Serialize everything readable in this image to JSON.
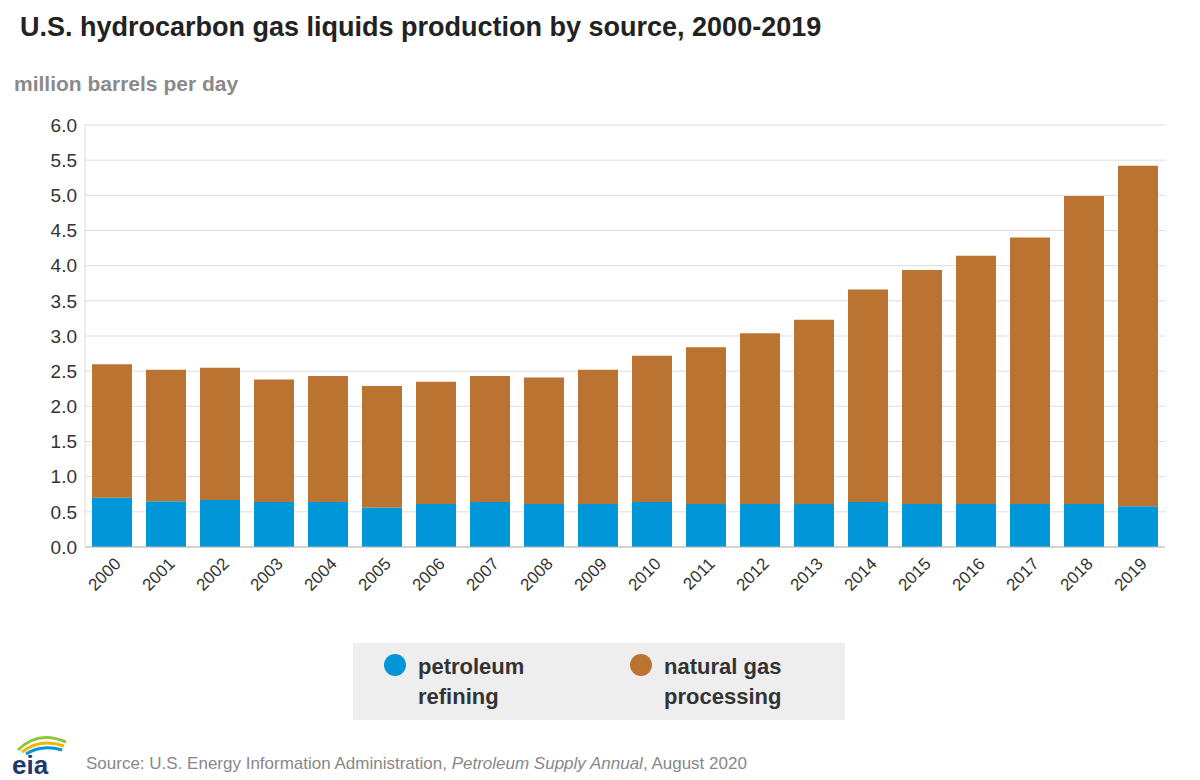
{
  "chart_data": {
    "type": "bar",
    "title": "U.S. hydrocarbon gas liquids production by source, 2000-2019",
    "y_label": "million barrels per day",
    "categories": [
      "2000",
      "2001",
      "2002",
      "2003",
      "2004",
      "2005",
      "2006",
      "2007",
      "2008",
      "2009",
      "2010",
      "2011",
      "2012",
      "2013",
      "2014",
      "2015",
      "2016",
      "2017",
      "2018",
      "2019"
    ],
    "series": [
      {
        "name": "petroleum refining",
        "color": "#0096d7",
        "values": [
          0.7,
          0.65,
          0.67,
          0.64,
          0.64,
          0.56,
          0.61,
          0.64,
          0.61,
          0.61,
          0.64,
          0.61,
          0.61,
          0.61,
          0.64,
          0.61,
          0.61,
          0.61,
          0.61,
          0.58
        ]
      },
      {
        "name": "natural gas processing",
        "color": "#bb7331",
        "values": [
          1.9,
          1.87,
          1.88,
          1.74,
          1.79,
          1.73,
          1.74,
          1.79,
          1.8,
          1.91,
          2.08,
          2.23,
          2.43,
          2.62,
          3.02,
          3.33,
          3.53,
          3.79,
          4.38,
          4.84
        ]
      }
    ],
    "ylim": [
      0,
      6
    ],
    "yticks": [
      {
        "value": 0,
        "label": "0.0"
      },
      0.5,
      {
        "value": 1,
        "label": "1.0"
      },
      1.5,
      {
        "value": 2,
        "label": "2.0"
      },
      2.5,
      {
        "value": 3,
        "label": "3.0"
      },
      3.5,
      {
        "value": 4,
        "label": "4.0"
      },
      4.5,
      {
        "value": 5,
        "label": "5.0"
      },
      5.5,
      {
        "value": 6,
        "label": "6.0"
      }
    ],
    "grid": true,
    "stacked": true,
    "legend": "bottom",
    "source": [
      "Source: U.S. Energy Information Administration, ",
      "Petroleum Supply Annual",
      ", August 2020"
    ],
    "logo": "eia"
  }
}
